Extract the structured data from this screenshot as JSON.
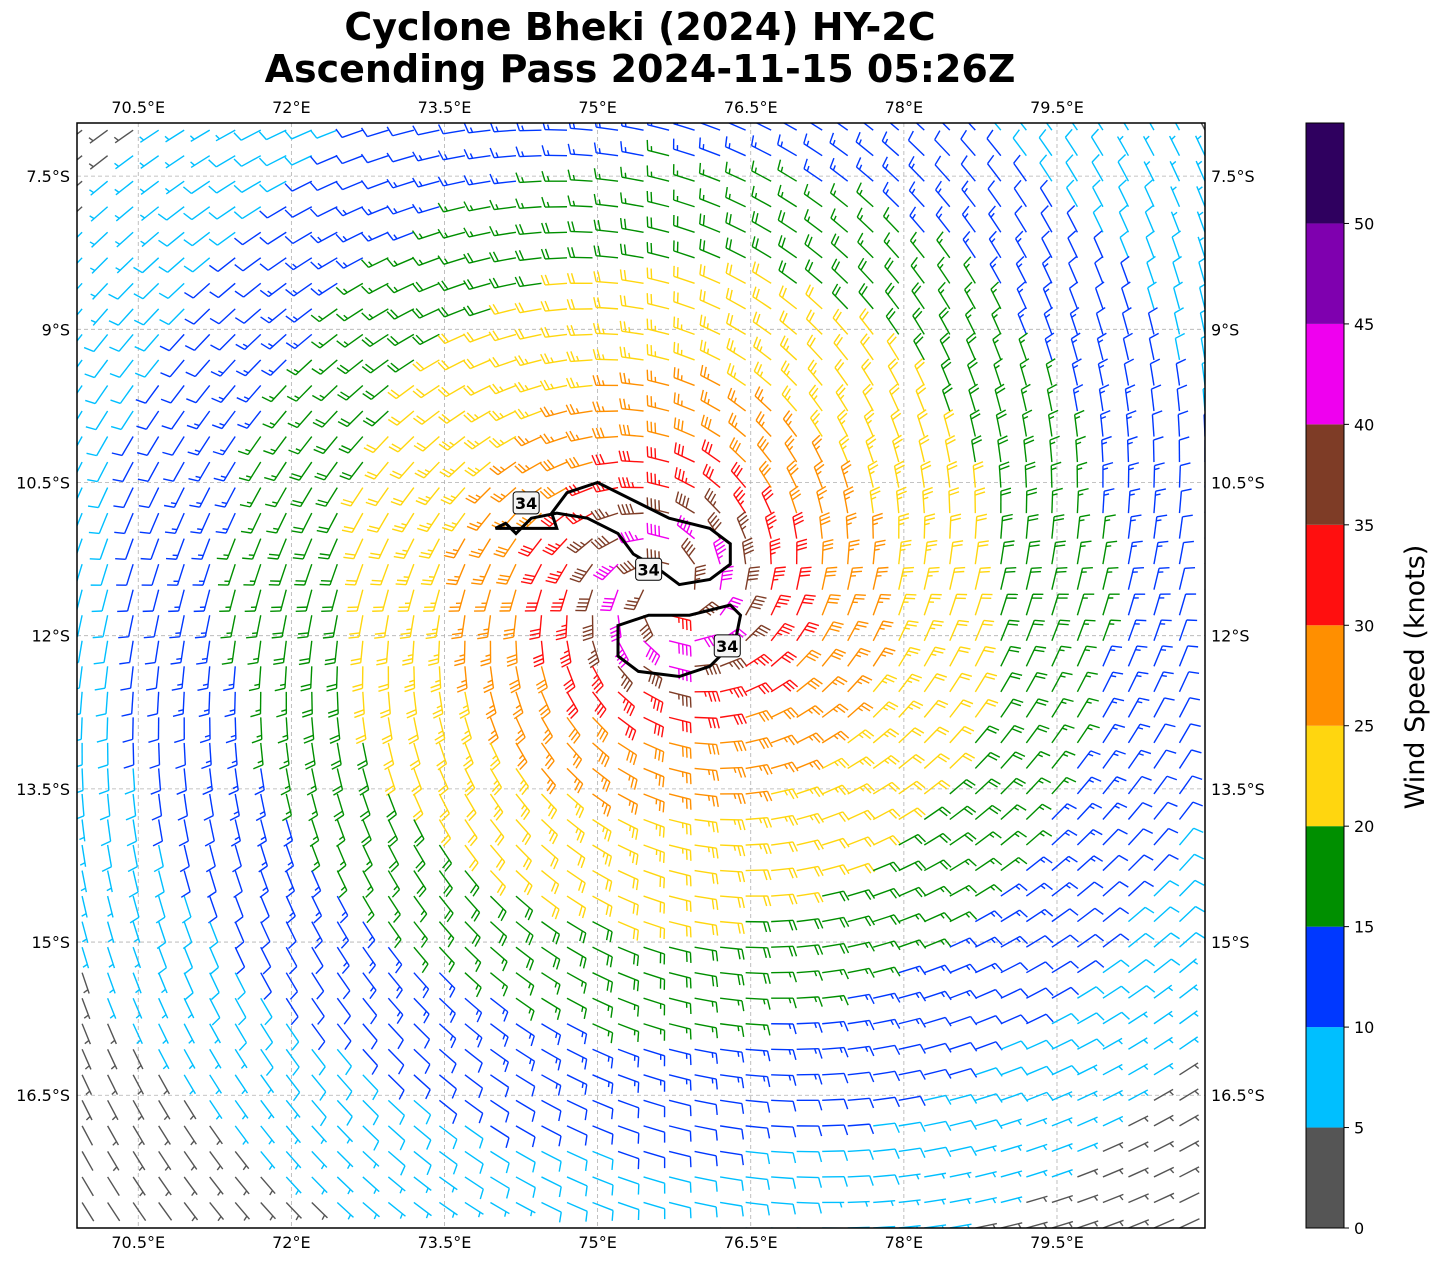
{
  "title": {
    "line1": "Cyclone Bheki (2024) HY-2C",
    "line2": "Ascending Pass 2024-11-15 05:26Z"
  },
  "map": {
    "lon_range": [
      69.9,
      80.95
    ],
    "lat_range": [
      -17.8,
      -6.98
    ],
    "lon_ticks": [
      {
        "value": 70.5,
        "label": "70.5°E"
      },
      {
        "value": 72.0,
        "label": "72°E"
      },
      {
        "value": 73.5,
        "label": "73.5°E"
      },
      {
        "value": 75.0,
        "label": "75°E"
      },
      {
        "value": 76.5,
        "label": "76.5°E"
      },
      {
        "value": 78.0,
        "label": "78°E"
      },
      {
        "value": 79.5,
        "label": "79.5°E"
      }
    ],
    "lat_ticks": [
      {
        "value": -7.5,
        "label": "7.5°S"
      },
      {
        "value": -9.0,
        "label": "9°S"
      },
      {
        "value": -10.5,
        "label": "10.5°S"
      },
      {
        "value": -12.0,
        "label": "12°S"
      },
      {
        "value": -13.5,
        "label": "13.5°S"
      },
      {
        "value": -15.0,
        "label": "15°S"
      },
      {
        "value": -16.5,
        "label": "16.5°S"
      }
    ],
    "gridlines": true,
    "cyclone_center": {
      "lon": 75.7,
      "lat": -11.6
    },
    "contour_34kt": {
      "level": "34",
      "label_positions": [
        {
          "lon": 74.3,
          "lat": -10.7
        },
        {
          "lon": 75.5,
          "lat": -11.35
        },
        {
          "lon": 76.27,
          "lat": -12.1
        }
      ]
    }
  },
  "colorbar": {
    "label": "Wind Speed (knots)",
    "bins": [
      {
        "from": 0,
        "to": 5,
        "color": "#555555"
      },
      {
        "from": 5,
        "to": 10,
        "color": "#00bfff"
      },
      {
        "from": 10,
        "to": 15,
        "color": "#0038ff"
      },
      {
        "from": 15,
        "to": 20,
        "color": "#008f00"
      },
      {
        "from": 20,
        "to": 25,
        "color": "#ffd60f"
      },
      {
        "from": 25,
        "to": 30,
        "color": "#ff8f00"
      },
      {
        "from": 30,
        "to": 35,
        "color": "#ff0f0f"
      },
      {
        "from": 35,
        "to": 40,
        "color": "#7e3c26"
      },
      {
        "from": 40,
        "to": 45,
        "color": "#ef00ef"
      },
      {
        "from": 45,
        "to": 50,
        "color": "#7f00af"
      },
      {
        "from": 50,
        "to": 55,
        "color": "#2f005f"
      }
    ],
    "tick_labels": [
      "0",
      "5",
      "10",
      "15",
      "20",
      "25",
      "30",
      "35",
      "40",
      "45",
      "50"
    ],
    "max": 55
  },
  "chart_data": {
    "type": "wind_barb_map",
    "title": "Cyclone Bheki (2024) HY-2C Ascending Pass 2024-11-15 05:26Z",
    "colorbar_label": "Wind Speed (knots)",
    "xlim": [
      69.9,
      80.95
    ],
    "ylim": [
      -17.8,
      -6.98
    ],
    "wind_field_description": "cyclonic clockwise circulation",
    "wind_field": {
      "center": {
        "lon": 75.7,
        "lat": -11.6
      },
      "rotation": "clockwise",
      "max_wind_kt": 43,
      "radius_of_max_wind_deg": 0.6,
      "speed_by_radius_deg": [
        {
          "r": 0.3,
          "kt": 38
        },
        {
          "r": 0.6,
          "kt": 43
        },
        {
          "r": 1.0,
          "kt": 34
        },
        {
          "r": 1.6,
          "kt": 28
        },
        {
          "r": 2.5,
          "kt": 23
        },
        {
          "r": 3.5,
          "kt": 19
        },
        {
          "r": 4.5,
          "kt": 14
        },
        {
          "r": 5.5,
          "kt": 10
        },
        {
          "r": 6.5,
          "kt": 6
        },
        {
          "r": 7.5,
          "kt": 3
        }
      ]
    }
  }
}
